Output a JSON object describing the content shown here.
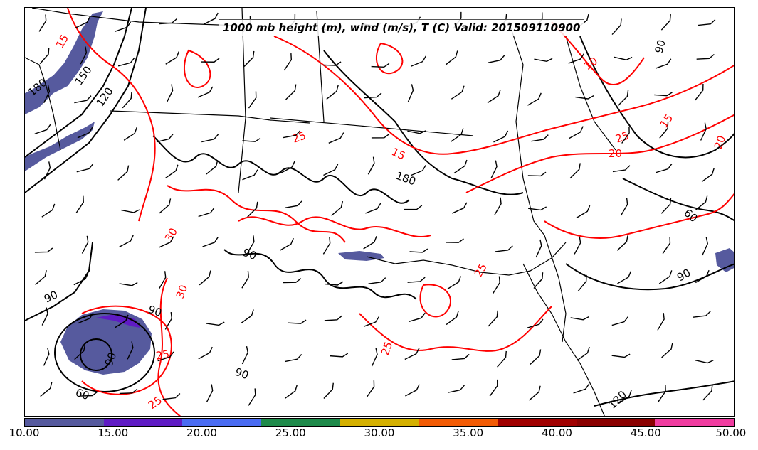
{
  "title": "1000 mb height (m), wind (m/s), T (C) Valid: 201509110900",
  "colorbar": {
    "colors": [
      "#565a9e",
      "#5f1bc4",
      "#4a6cf2",
      "#1e8a4a",
      "#d4b000",
      "#f25b04",
      "#a00000",
      "#8a0000",
      "#f03ca0"
    ],
    "ticks": [
      "10.00",
      "15.00",
      "20.00",
      "25.00",
      "30.00",
      "35.00",
      "40.00",
      "45.00",
      "50.00"
    ]
  },
  "height_labels": [
    "150",
    "120",
    "180",
    "90",
    "60",
    "90",
    "90",
    "90",
    "90",
    "60",
    "90",
    "120",
    "180",
    "90"
  ],
  "temp_labels": [
    "15",
    "15",
    "10",
    "15",
    "20",
    "25",
    "20",
    "25",
    "25",
    "25",
    "25",
    "30",
    "30",
    "25"
  ],
  "colors": {
    "height_contour": "#000000",
    "temp_contour": "#ff0000",
    "borders": "#000000",
    "wind_barb": "#000000",
    "wind_shading": "#565a9e"
  }
}
